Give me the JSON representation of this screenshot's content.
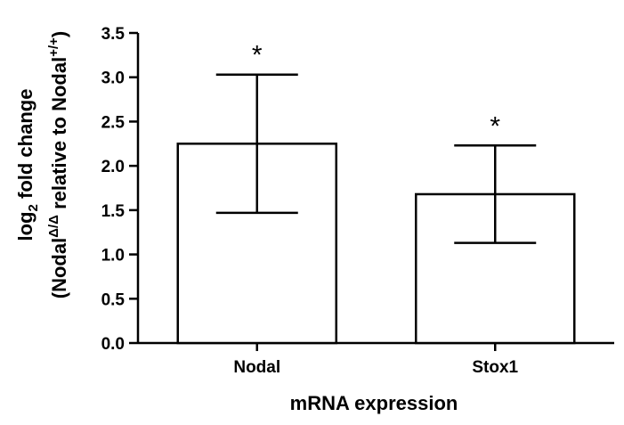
{
  "chart_data": {
    "type": "bar",
    "categories": [
      "Nodal",
      "Stox1"
    ],
    "values": [
      2.25,
      1.68
    ],
    "errors": [
      {
        "low": 1.47,
        "high": 3.03
      },
      {
        "low": 1.13,
        "high": 2.23
      }
    ],
    "annotations": [
      "*",
      "*"
    ],
    "xlabel": "mRNA expression",
    "ylabel": {
      "line1_base": "log",
      "line1_sub": "2",
      "line1_rest": " fold change",
      "line2_open": "(Nodal",
      "line2_sup1": "Δ/Δ",
      "line2_mid": " relative to Nodal",
      "line2_sup2": "+/+",
      "line2_close": ")"
    },
    "ylim": [
      0,
      3.5
    ],
    "yticks": [
      "0.0",
      "0.5",
      "1.0",
      "1.5",
      "2.0",
      "2.5",
      "3.0",
      "3.5"
    ],
    "grid": false,
    "bar_fill": "#ffffff",
    "stroke_color": "#000000"
  }
}
